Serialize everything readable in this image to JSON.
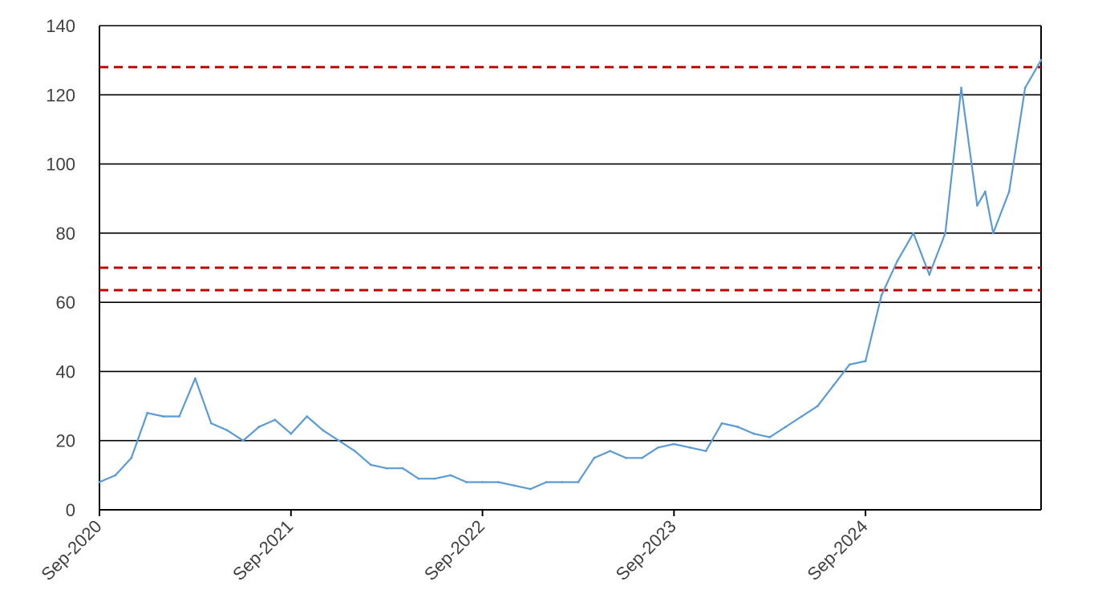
{
  "chart_data": {
    "type": "line",
    "title": "",
    "xlabel": "",
    "ylabel": "",
    "x_range": [
      "2020-09",
      "2025-05"
    ],
    "ylim": [
      0,
      140
    ],
    "y_ticks": [
      0,
      20,
      40,
      60,
      80,
      100,
      120,
      140
    ],
    "x_tick_labels": [
      "Sep-2020",
      "Sep-2021",
      "Sep-2022",
      "Sep-2023",
      "Sep-2024"
    ],
    "grid": true,
    "legend": "none",
    "series": [
      {
        "color": "#5b9bd5",
        "points": [
          [
            "2020-09",
            8
          ],
          [
            "2020-10",
            10
          ],
          [
            "2020-11",
            15
          ],
          [
            "2020-12",
            28
          ],
          [
            "2021-01",
            27
          ],
          [
            "2021-02",
            27
          ],
          [
            "2021-03",
            38
          ],
          [
            "2021-04",
            25
          ],
          [
            "2021-05",
            23
          ],
          [
            "2021-06",
            20
          ],
          [
            "2021-07",
            24
          ],
          [
            "2021-08",
            26
          ],
          [
            "2021-09",
            22
          ],
          [
            "2021-10",
            27
          ],
          [
            "2021-11",
            23
          ],
          [
            "2021-12",
            20
          ],
          [
            "2022-01",
            17
          ],
          [
            "2022-02",
            13
          ],
          [
            "2022-03",
            12
          ],
          [
            "2022-04",
            12
          ],
          [
            "2022-05",
            9
          ],
          [
            "2022-06",
            9
          ],
          [
            "2022-07",
            10
          ],
          [
            "2022-08",
            8
          ],
          [
            "2022-09",
            8
          ],
          [
            "2022-10",
            8
          ],
          [
            "2022-11",
            7
          ],
          [
            "2022-12",
            6
          ],
          [
            "2023-01",
            8
          ],
          [
            "2023-02",
            8
          ],
          [
            "2023-03",
            8
          ],
          [
            "2023-04",
            15
          ],
          [
            "2023-05",
            17
          ],
          [
            "2023-06",
            15
          ],
          [
            "2023-07",
            15
          ],
          [
            "2023-08",
            18
          ],
          [
            "2023-09",
            19
          ],
          [
            "2023-10",
            18
          ],
          [
            "2023-11",
            17
          ],
          [
            "2023-12",
            25
          ],
          [
            "2024-01",
            24
          ],
          [
            "2024-02",
            22
          ],
          [
            "2024-03",
            21
          ],
          [
            "2024-04",
            24
          ],
          [
            "2024-05",
            27
          ],
          [
            "2024-06",
            30
          ],
          [
            "2024-07",
            36
          ],
          [
            "2024-08",
            42
          ],
          [
            "2024-09",
            43
          ],
          [
            "2024-10",
            62
          ],
          [
            "2024-11",
            72
          ],
          [
            "2024-12",
            80
          ],
          [
            "2025-01",
            68
          ],
          [
            "2025-02",
            80
          ],
          [
            "2025-03",
            122
          ],
          [
            "2025-04",
            88
          ],
          [
            "2025-04",
            92
          ],
          [
            "2025-05",
            80
          ],
          [
            "2025-06",
            92
          ],
          [
            "2025-07",
            122
          ],
          [
            "2025-08",
            130
          ]
        ]
      }
    ],
    "reference_lines": [
      {
        "y": 128,
        "color": "#c00000",
        "style": "dashed"
      },
      {
        "y": 70,
        "color": "#c00000",
        "style": "dashed"
      },
      {
        "y": 63.5,
        "color": "#c00000",
        "style": "dashed"
      }
    ]
  }
}
